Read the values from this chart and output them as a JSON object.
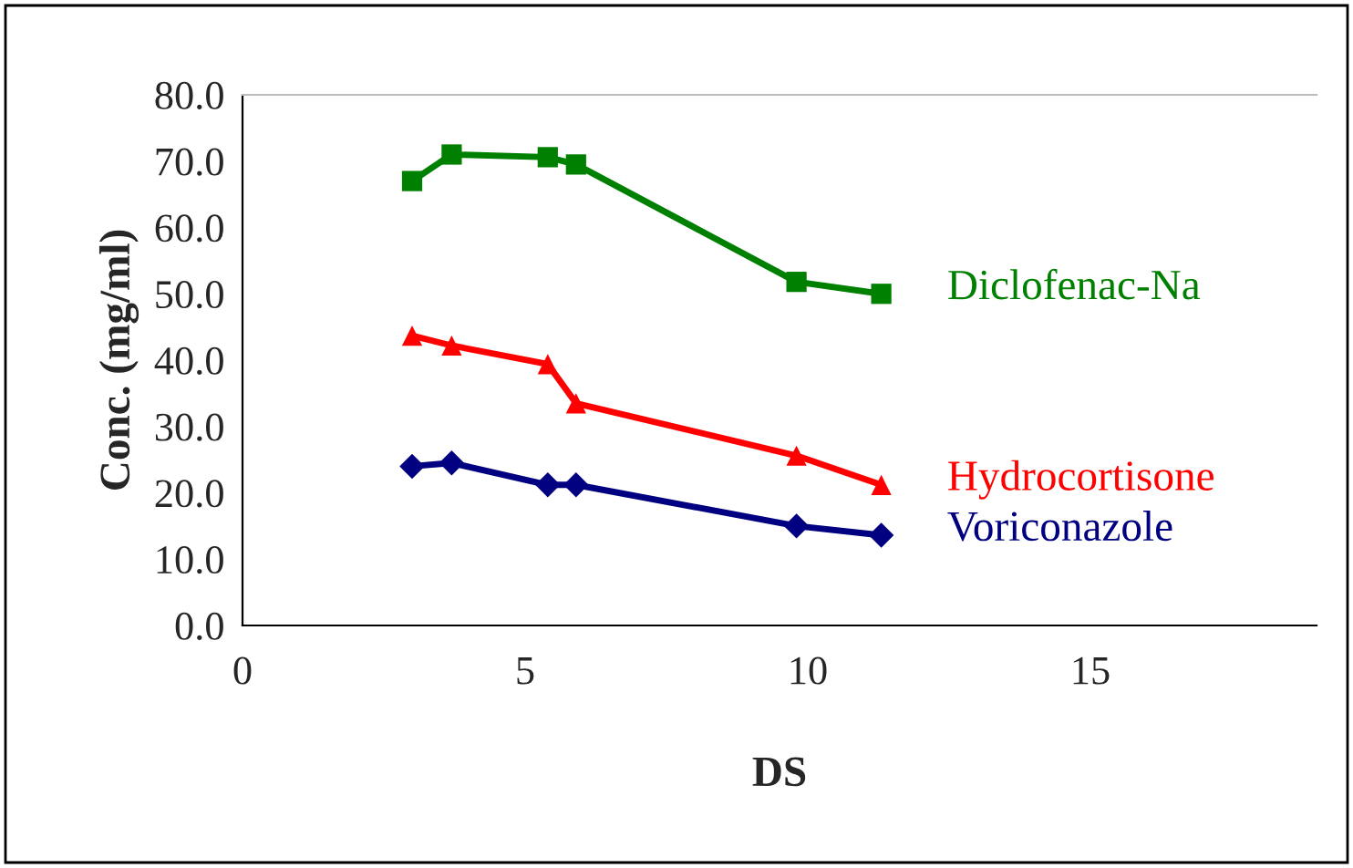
{
  "chart_data": {
    "type": "line",
    "xlabel": "DS",
    "ylabel": "Conc. (mg/ml)",
    "x": [
      3.0,
      3.7,
      5.4,
      5.9,
      9.8,
      11.3
    ],
    "series": [
      {
        "name": "Diclofenac-Na",
        "color": "#008000",
        "marker": "square",
        "values": [
          67.0,
          71.0,
          70.6,
          69.5,
          51.8,
          50.0
        ]
      },
      {
        "name": "Hydrocortisone",
        "color": "#ff0000",
        "marker": "triangle",
        "values": [
          43.7,
          42.2,
          39.4,
          33.5,
          25.6,
          21.2
        ]
      },
      {
        "name": "Voriconazole",
        "color": "#000080",
        "marker": "diamond",
        "values": [
          24.0,
          24.5,
          21.2,
          21.2,
          15.0,
          13.6
        ]
      }
    ],
    "xlim": [
      0,
      19
    ],
    "xticks": [
      0,
      5,
      10,
      15
    ],
    "ylim": [
      0,
      80
    ],
    "yticks": [
      {
        "value": 0,
        "label": "0.0"
      },
      {
        "value": 10,
        "label": "10.0"
      },
      {
        "value": 20,
        "label": "20.0"
      },
      {
        "value": 30,
        "label": "30.0"
      },
      {
        "value": 40,
        "label": "40.0"
      },
      {
        "value": 50,
        "label": "50.0"
      },
      {
        "value": 60,
        "label": "60.0"
      },
      {
        "value": 70,
        "label": "70.0"
      },
      {
        "value": 80,
        "label": "80.0"
      }
    ],
    "grid": false,
    "legend": false
  }
}
